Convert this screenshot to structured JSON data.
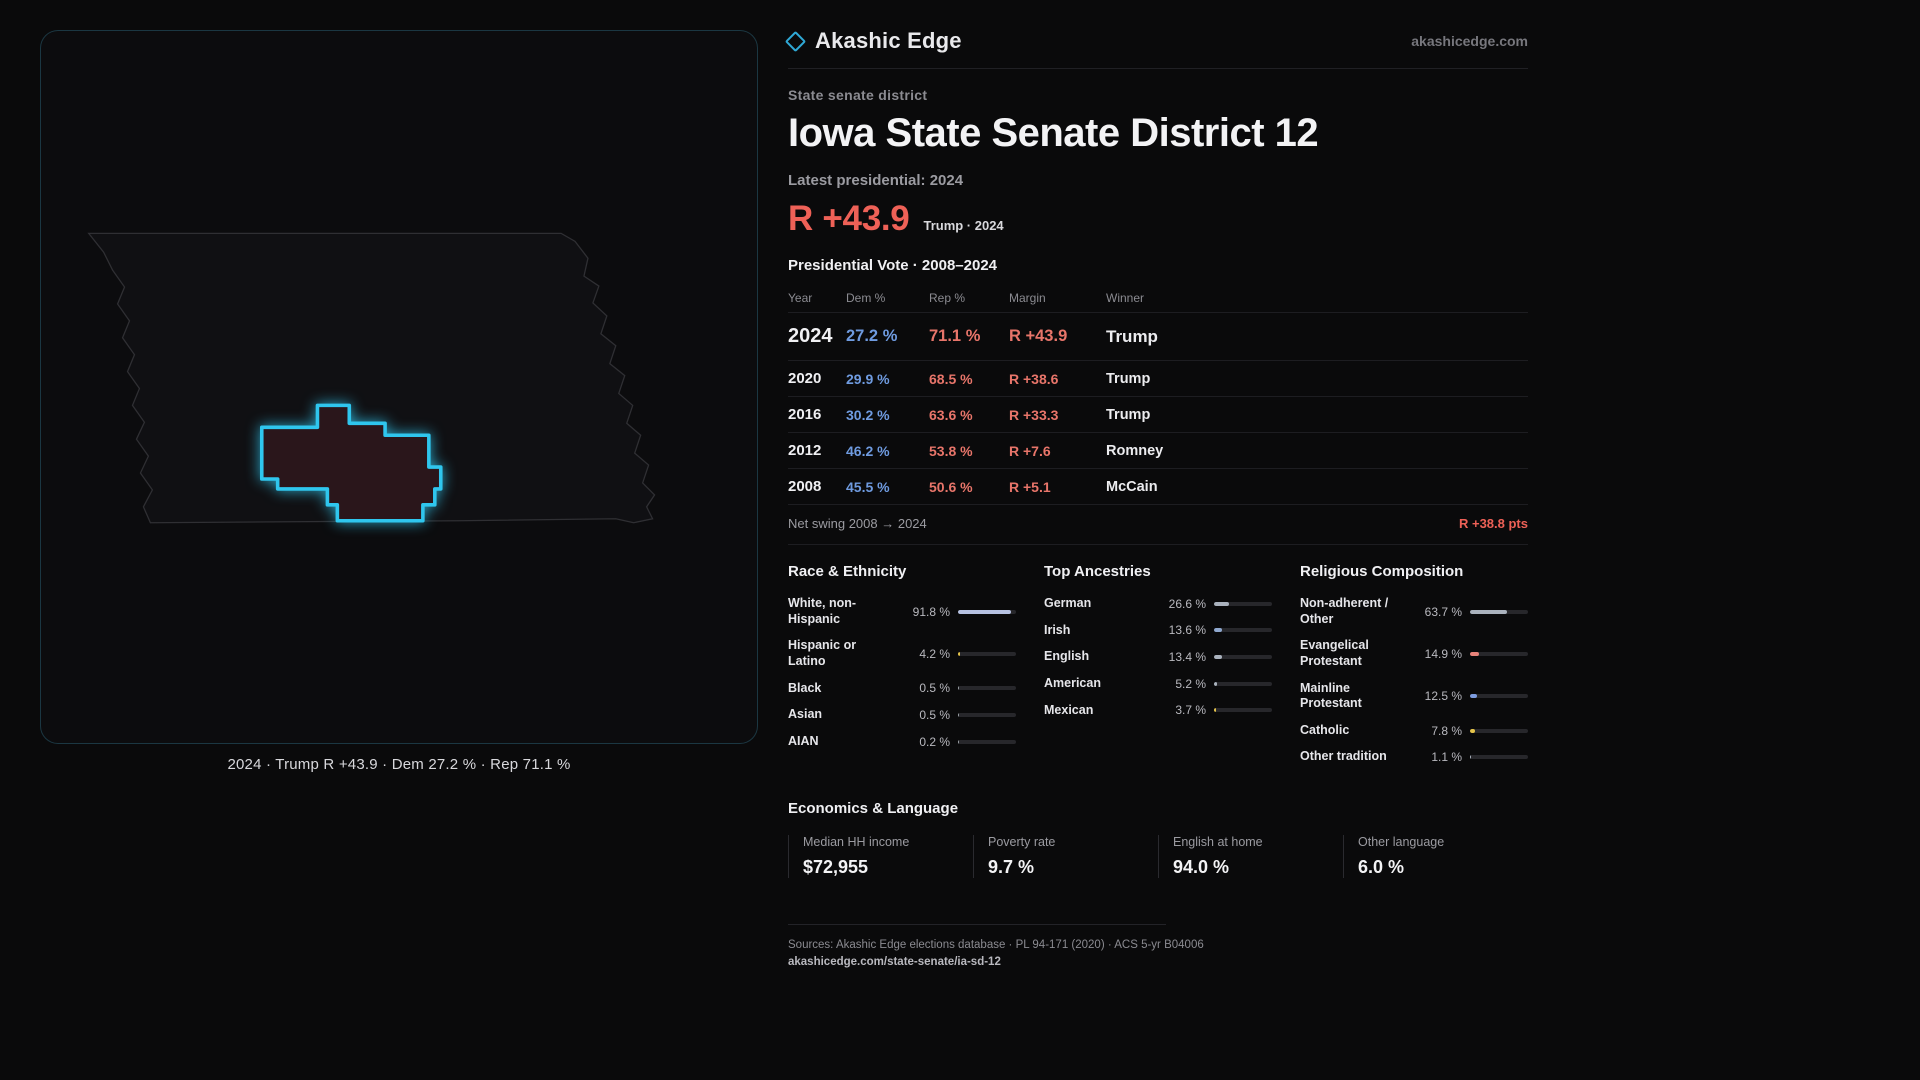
{
  "theme": {
    "accent": "#2fc6ee",
    "dem_blue": "#6f9be0",
    "rep_red": "#ee6157",
    "background": "#0a0a0b"
  },
  "brand": {
    "name": "Akashic Edge",
    "site": "akashicedge.com"
  },
  "district_header": {
    "kicker": "State senate district",
    "title": "Iowa State Senate District 12",
    "latest_label": "Latest presidential: 2024",
    "headline_margin": "R +43.9",
    "headline_detail": "Trump · 2024"
  },
  "map": {
    "caption": "2024 · Trump R +43.9 · Dem 27.2 % · Rep 71.1 %"
  },
  "vote_table": {
    "title": "Presidential Vote · 2008–2024",
    "columns": [
      "Year",
      "Dem %",
      "Rep %",
      "Margin",
      "Winner"
    ],
    "rows": [
      {
        "year": "2024",
        "dem": "27.2 %",
        "rep": "71.1 %",
        "margin": "R +43.9",
        "winner": "Trump"
      },
      {
        "year": "2020",
        "dem": "29.9 %",
        "rep": "68.5 %",
        "margin": "R +38.6",
        "winner": "Trump"
      },
      {
        "year": "2016",
        "dem": "30.2 %",
        "rep": "63.6 %",
        "margin": "R +33.3",
        "winner": "Trump"
      },
      {
        "year": "2012",
        "dem": "46.2 %",
        "rep": "53.8 %",
        "margin": "R +7.6",
        "winner": "Romney"
      },
      {
        "year": "2008",
        "dem": "45.5 %",
        "rep": "50.6 %",
        "margin": "R +5.1",
        "winner": "McCain"
      }
    ]
  },
  "net_swing": {
    "label": "Net swing 2008 → 2024",
    "value": "R +38.8 pts"
  },
  "demographics": {
    "race": {
      "title": "Race & Ethnicity",
      "items": [
        {
          "label": "White, non-Hispanic",
          "value": "91.8 %",
          "pct": 91.8,
          "color": "#b7c2e2"
        },
        {
          "label": "Hispanic or Latino",
          "value": "4.2 %",
          "pct": 4.2,
          "color": "#e5c44a"
        },
        {
          "label": "Black",
          "value": "0.5 %",
          "pct": 0.5,
          "color": "#9aa0a6"
        },
        {
          "label": "Asian",
          "value": "0.5 %",
          "pct": 0.5,
          "color": "#9aa0a6"
        },
        {
          "label": "AIAN",
          "value": "0.2 %",
          "pct": 0.2,
          "color": "#9aa0a6"
        }
      ]
    },
    "ancestries": {
      "title": "Top Ancestries",
      "items": [
        {
          "label": "German",
          "value": "26.6 %",
          "pct": 26.6,
          "color": "#aab2bd"
        },
        {
          "label": "Irish",
          "value": "13.6 %",
          "pct": 13.6,
          "color": "#8fa8cf"
        },
        {
          "label": "English",
          "value": "13.4 %",
          "pct": 13.4,
          "color": "#aab2bd"
        },
        {
          "label": "American",
          "value": "5.2 %",
          "pct": 5.2,
          "color": "#aab2bd"
        },
        {
          "label": "Mexican",
          "value": "3.7 %",
          "pct": 3.7,
          "color": "#e5c44a"
        }
      ]
    },
    "religion": {
      "title": "Religious Composition",
      "items": [
        {
          "label": "Non-adherent / Other",
          "value": "63.7 %",
          "pct": 63.7,
          "color": "#aab2bd"
        },
        {
          "label": "Evangelical Protestant",
          "value": "14.9 %",
          "pct": 14.9,
          "color": "#e8837a"
        },
        {
          "label": "Mainline Protestant",
          "value": "12.5 %",
          "pct": 12.5,
          "color": "#7d9ce0"
        },
        {
          "label": "Catholic",
          "value": "7.8 %",
          "pct": 7.8,
          "color": "#e5c44a"
        },
        {
          "label": "Other tradition",
          "value": "1.1 %",
          "pct": 1.1,
          "color": "#aab2bd"
        }
      ]
    }
  },
  "economics": {
    "title": "Economics & Language",
    "stats": [
      {
        "label": "Median HH income",
        "value": "$72,955"
      },
      {
        "label": "Poverty rate",
        "value": "9.7 %"
      },
      {
        "label": "English at home",
        "value": "94.0 %"
      },
      {
        "label": "Other language",
        "value": "6.0 %"
      }
    ]
  },
  "footer": {
    "sources": "Sources: Akashic Edge elections database · PL 94-171 (2020) · ACS 5-yr B04006",
    "permalink": "akashicedge.com/state-senate/ia-sd-12"
  }
}
